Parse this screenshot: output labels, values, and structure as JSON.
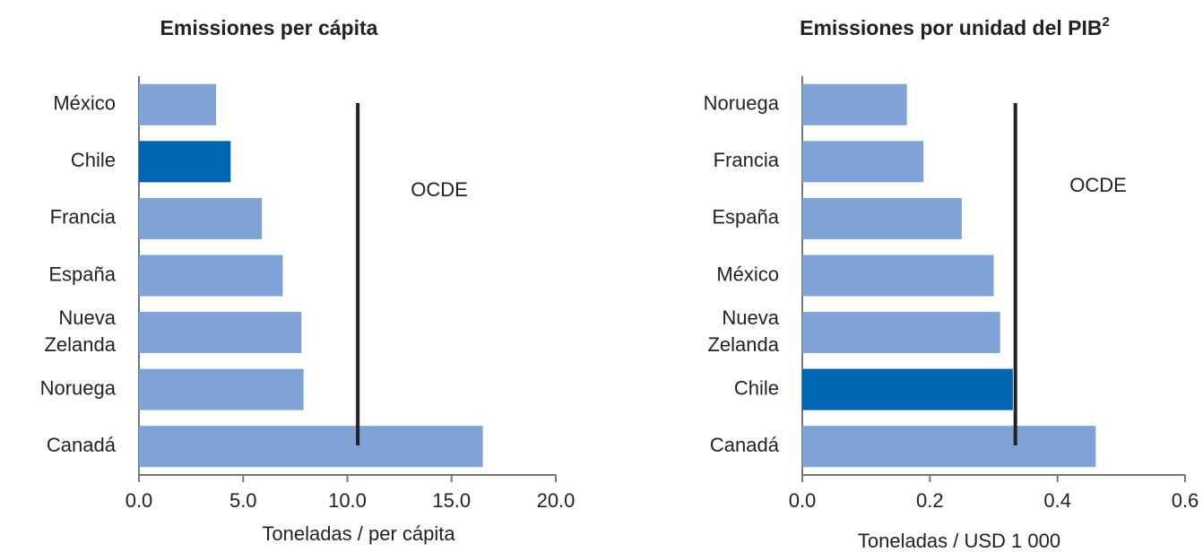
{
  "chart_data": [
    {
      "type": "bar",
      "orientation": "horizontal",
      "title": "Emissiones per cápita",
      "categories": [
        "México",
        "Chile",
        "Francia",
        "España",
        "Nueva Zelanda",
        "Noruega",
        "Canadá"
      ],
      "values": [
        3.7,
        4.4,
        5.9,
        6.9,
        7.8,
        7.9,
        16.5
      ],
      "colors": [
        "#7fa3d6",
        "#0066b3",
        "#7fa3d6",
        "#7fa3d6",
        "#7fa3d6",
        "#7fa3d6",
        "#7fa3d6"
      ],
      "xlim": [
        0,
        20
      ],
      "xticks": [
        {
          "value": 0,
          "label": "0.0"
        },
        {
          "value": 5,
          "label": "5.0"
        },
        {
          "value": 10,
          "label": "10.0"
        },
        {
          "value": 15,
          "label": "15.0"
        },
        {
          "value": 20,
          "label": "20.0"
        }
      ],
      "xlabel": "Toneladas / per cápita",
      "ref_line": {
        "value": 10.5,
        "label": "OCDE"
      }
    },
    {
      "type": "bar",
      "orientation": "horizontal",
      "title": "Emissiones por unidad del PIB",
      "title_note": "2",
      "categories": [
        "Noruega",
        "Francia",
        "España",
        "México",
        "Nueva Zelanda",
        "Chile",
        "Canadá"
      ],
      "values": [
        0.164,
        0.19,
        0.25,
        0.3,
        0.31,
        0.33,
        0.46
      ],
      "colors": [
        "#7fa3d6",
        "#7fa3d6",
        "#7fa3d6",
        "#7fa3d6",
        "#7fa3d6",
        "#0066b3",
        "#7fa3d6"
      ],
      "xlim": [
        0,
        0.6
      ],
      "xticks": [
        {
          "value": 0,
          "label": "0.0"
        },
        0.2,
        0.4,
        0.6
      ],
      "xlabel": "Toneladas / USD 1 000",
      "ref_line": {
        "value": 0.334,
        "label": "OCDE"
      }
    }
  ]
}
